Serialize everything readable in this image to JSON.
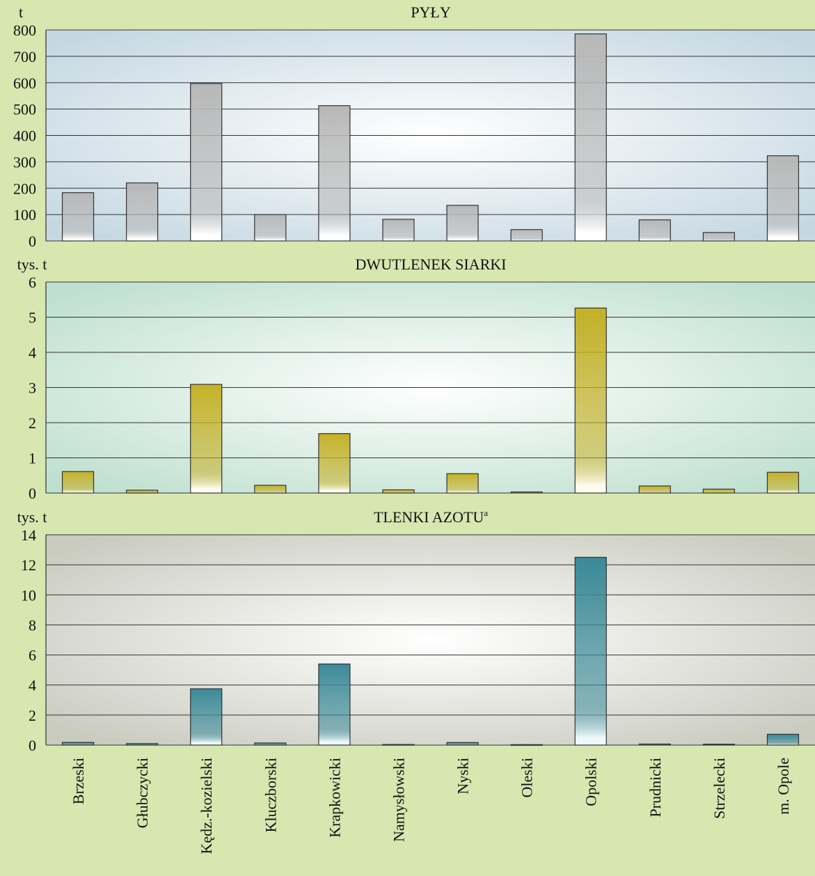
{
  "page": {
    "background": "#d8e6b0"
  },
  "chart_data": [
    {
      "type": "bar",
      "title": "PYŁY",
      "ylabel": "t",
      "ylim": [
        0,
        800
      ],
      "yticks": [
        0,
        100,
        200,
        300,
        400,
        500,
        600,
        700,
        800
      ],
      "categories": [
        "Brzeski",
        "Głubczycki",
        "Kędz.-kozielski",
        "Kluczborski",
        "Krapkowicki",
        "Namysłowski",
        "Nyski",
        "Oleski",
        "Opolski",
        "Prudnicki",
        "Strzelecki",
        "m. Opole"
      ],
      "values": [
        183,
        220,
        597,
        100,
        513,
        82,
        135,
        43,
        785,
        80,
        32,
        323
      ],
      "colors": {
        "bar_top": "#b8b8b8",
        "bar_bottom": "#ffffff",
        "plot_edge": "#c5d8e2",
        "plot_center": "#ffffff"
      },
      "grid": true,
      "legend": "none"
    },
    {
      "type": "bar",
      "title": "DWUTLENEK SIARKI",
      "ylabel": "tys. t",
      "ylim": [
        0,
        6
      ],
      "yticks": [
        0,
        1,
        2,
        3,
        4,
        5,
        6
      ],
      "categories": [
        "Brzeski",
        "Głubczycki",
        "Kędz.-kozielski",
        "Kluczborski",
        "Krapkowicki",
        "Namysłowski",
        "Nyski",
        "Oleski",
        "Opolski",
        "Prudnicki",
        "Strzelecki",
        "m. Opole"
      ],
      "values": [
        0.61,
        0.08,
        3.09,
        0.22,
        1.69,
        0.09,
        0.55,
        0.03,
        5.26,
        0.2,
        0.11,
        0.59
      ],
      "colors": {
        "bar_top": "#c4b128",
        "bar_bottom": "#fdfbee",
        "plot_edge": "#bfe0d0",
        "plot_center": "#ffffff"
      },
      "grid": true,
      "legend": "none"
    },
    {
      "type": "bar",
      "title": "TLENKI AZOTU",
      "title_superscript": "a",
      "ylabel": "tys. t",
      "ylim": [
        0,
        14
      ],
      "yticks": [
        0,
        2,
        4,
        6,
        8,
        10,
        12,
        14
      ],
      "categories": [
        "Brzeski",
        "Głubczycki",
        "Kędz.-kozielski",
        "Kluczborski",
        "Krapkowicki",
        "Namysłowski",
        "Nyski",
        "Oleski",
        "Opolski",
        "Prudnicki",
        "Strzelecki",
        "m. Opole"
      ],
      "values": [
        0.18,
        0.1,
        3.75,
        0.14,
        5.4,
        0.04,
        0.17,
        0.03,
        12.5,
        0.07,
        0.06,
        0.72
      ],
      "colors": {
        "bar_top": "#3b8a98",
        "bar_bottom": "#eef8fb",
        "plot_edge": "#c9cbbf",
        "plot_center": "#ffffff"
      },
      "grid": true,
      "legend": "none"
    }
  ]
}
